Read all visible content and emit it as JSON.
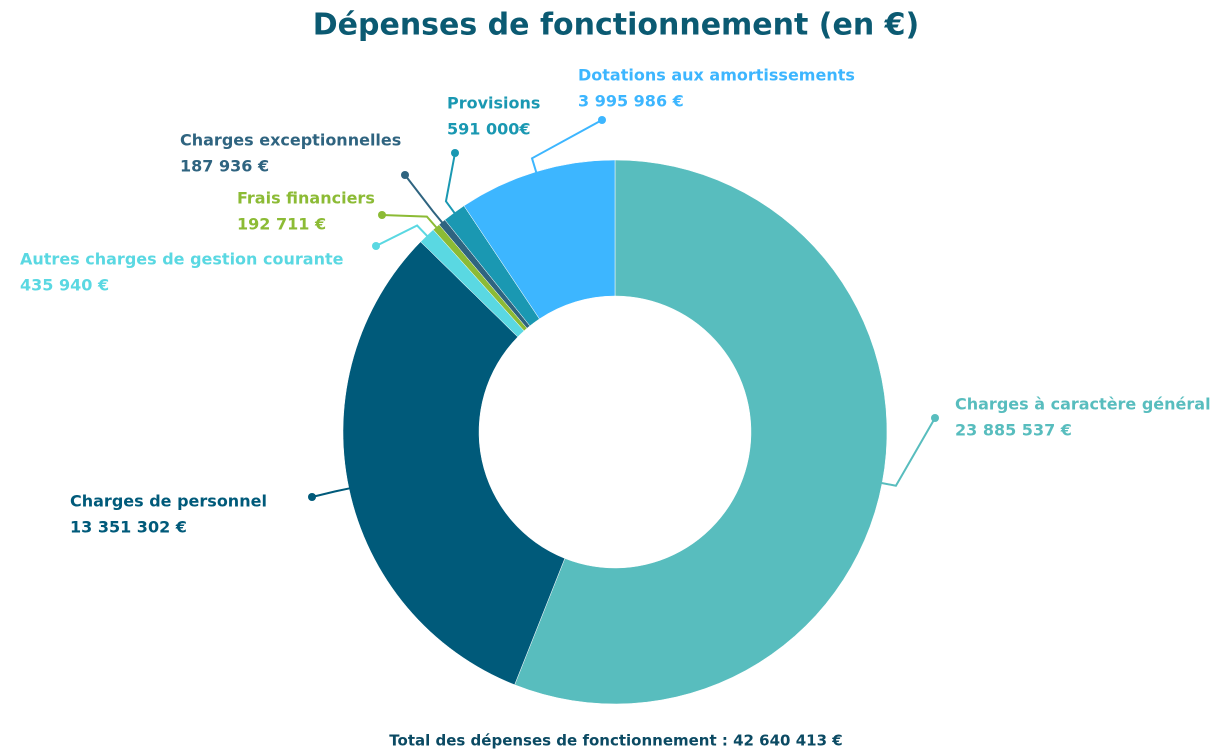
{
  "chart_data": {
    "type": "donut",
    "title": "Dépenses de fonctionnement (en €)",
    "categories": [
      "Charges à caractère général",
      "Charges de personnel",
      "Autres charges de gestion courante",
      "Frais financiers",
      "Charges exceptionnelles",
      "Provisions",
      "Dotations aux amortissements"
    ],
    "values": [
      23885537,
      13351302,
      435940,
      192711,
      187936,
      591000,
      3995986
    ],
    "value_labels": [
      "23 885 537 €",
      "13 351 302 €",
      "435 940 €",
      "192 711 €",
      "187 936 €",
      "591 000€",
      "3 995 986 €"
    ],
    "colors": [
      "#58bdbe",
      "#005a7a",
      "#5ad8e2",
      "#8cbb35",
      "#2f6480",
      "#1a98b2",
      "#3db6ff"
    ],
    "annotation": "Total des dépenses de fonctionnement : 42 640 413 €"
  }
}
